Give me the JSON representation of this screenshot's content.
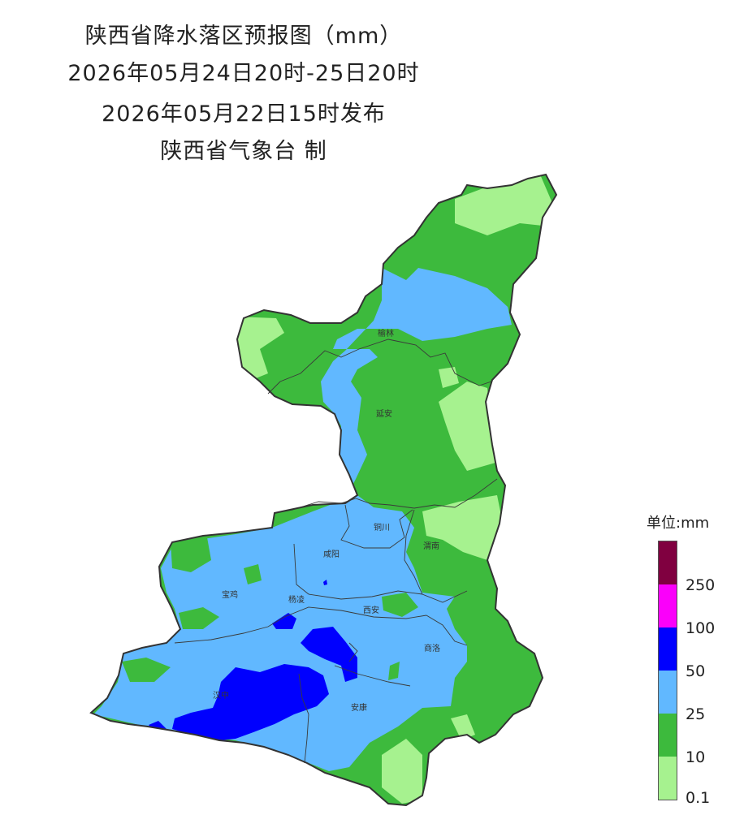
{
  "header": {
    "title": "陕西省降水落区预报图（mm）",
    "period": "2026年05月24日20时-25日20时",
    "issued": "2026年05月22日15时发布",
    "producer": "陕西省气象台 制"
  },
  "map": {
    "cities": [
      "榆林",
      "延安",
      "铜川",
      "咸阳",
      "渭南",
      "宝鸡",
      "杨凌",
      "西安",
      "商洛",
      "汉中",
      "安康"
    ],
    "colors": {
      "light_green": "#a6f28f",
      "green": "#3dba3d",
      "light_blue": "#61b8ff",
      "blue": "#0000fe",
      "magenta": "#fa00fa",
      "maroon": "#800040"
    }
  },
  "legend": {
    "title": "单位:mm",
    "colors": [
      "#800040",
      "#fa00fa",
      "#0000fe",
      "#61b8ff",
      "#3dba3d",
      "#a6f28f"
    ],
    "ticks": [
      "250",
      "100",
      "50",
      "25",
      "10",
      "0.1"
    ]
  }
}
